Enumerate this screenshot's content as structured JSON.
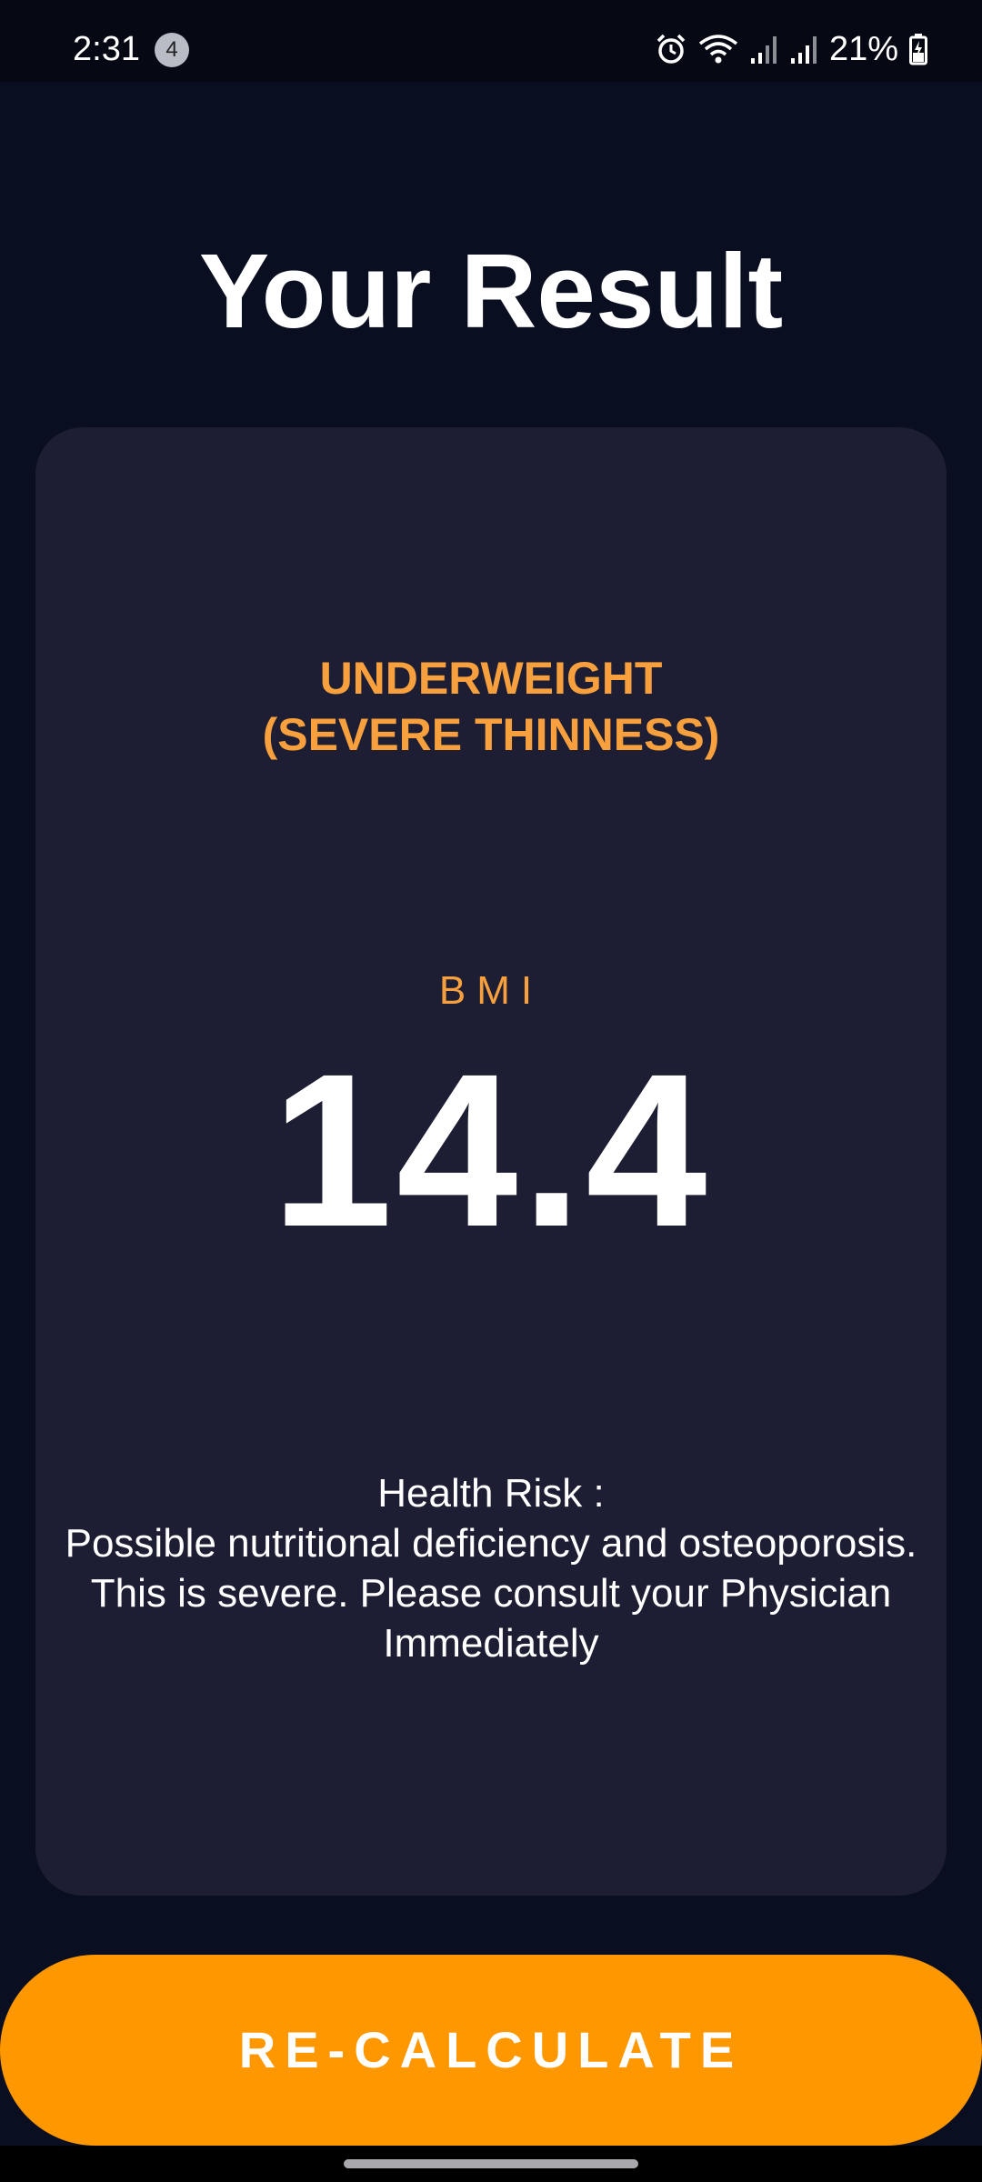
{
  "status_bar": {
    "time": "2:31",
    "notification_count": "4",
    "battery_percent": "21%",
    "icons": [
      "alarm-icon",
      "wifi-icon",
      "signal-icon",
      "signal-icon",
      "battery-charging-icon"
    ]
  },
  "page": {
    "title": "Your Result"
  },
  "result": {
    "category_line1": "UNDERWEIGHT",
    "category_line2": "(SEVERE THINNESS)",
    "bmi_label": "BMI",
    "bmi_value": "14.4",
    "health_risk_label": "Health Risk :",
    "health_risk_text": "Possible nutritional deficiency and osteoporosis. This is severe. Please consult your Physician Immediately"
  },
  "actions": {
    "recalculate_label": "RE-CALCULATE"
  },
  "colors": {
    "background": "#0a0e21",
    "card": "#1d1e33",
    "accent_text": "#f7a03d",
    "button": "#ff9800"
  }
}
